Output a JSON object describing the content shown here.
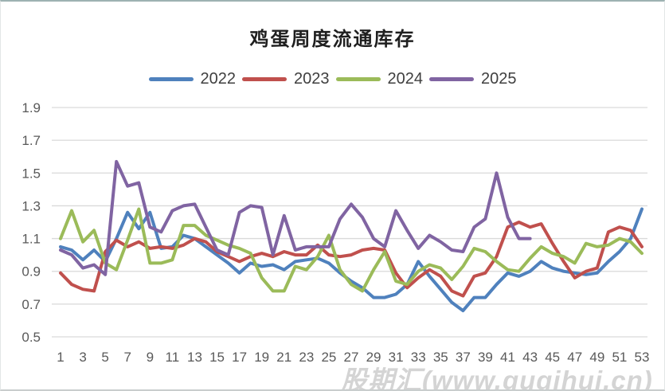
{
  "chart": {
    "title": "鸡蛋周度流通库存",
    "watermark": "股期汇(www.guqihui.cn)"
  },
  "chart_data": {
    "type": "line",
    "title": "鸡蛋周度流通库存",
    "xlabel": "",
    "ylabel": "",
    "x_unit": "week-of-year",
    "ylim": [
      0.5,
      1.9
    ],
    "y_ticks": [
      0.5,
      0.7,
      0.9,
      1.1,
      1.3,
      1.5,
      1.7,
      1.9
    ],
    "x_tick_labels": [
      1,
      3,
      5,
      7,
      9,
      11,
      13,
      15,
      17,
      19,
      21,
      23,
      25,
      27,
      29,
      31,
      33,
      35,
      37,
      39,
      41,
      43,
      45,
      47,
      49,
      51,
      53
    ],
    "grid": "horizontal",
    "legend_position": "top",
    "colors": {
      "2022": "#4F81BD",
      "2023": "#C0504D",
      "2024": "#9BBB59",
      "2025": "#8064A2"
    },
    "series": [
      {
        "name": "2022",
        "color": "#4F81BD",
        "values": [
          1.05,
          1.03,
          0.97,
          1.03,
          0.96,
          1.1,
          1.26,
          1.16,
          1.26,
          1.04,
          1.05,
          1.12,
          1.1,
          1.05,
          1.0,
          0.95,
          0.89,
          0.95,
          0.93,
          0.94,
          0.91,
          0.96,
          0.97,
          0.98,
          0.95,
          0.89,
          0.84,
          0.8,
          0.74,
          0.74,
          0.76,
          0.82,
          0.96,
          0.87,
          0.79,
          0.71,
          0.66,
          0.74,
          0.74,
          0.82,
          0.89,
          0.87,
          0.9,
          0.96,
          0.92,
          0.9,
          0.89,
          0.88,
          0.89,
          0.96,
          1.02,
          1.1,
          1.28
        ]
      },
      {
        "name": "2023",
        "color": "#C0504D",
        "values": [
          0.89,
          0.82,
          0.79,
          0.78,
          1.02,
          1.09,
          1.05,
          1.08,
          1.04,
          1.05,
          1.04,
          1.06,
          1.1,
          1.08,
          1.02,
          0.99,
          0.96,
          0.99,
          1.01,
          0.99,
          1.02,
          1.0,
          1.0,
          1.06,
          1.0,
          0.99,
          1.0,
          1.03,
          1.04,
          1.03,
          0.89,
          0.8,
          0.86,
          0.91,
          0.87,
          0.78,
          0.75,
          0.87,
          0.89,
          0.99,
          1.17,
          1.2,
          1.17,
          1.19,
          1.07,
          0.96,
          0.86,
          0.9,
          0.92,
          1.14,
          1.17,
          1.15,
          1.05
        ]
      },
      {
        "name": "2024",
        "color": "#9BBB59",
        "values": [
          1.1,
          1.27,
          1.08,
          1.15,
          0.95,
          0.91,
          1.09,
          1.28,
          0.95,
          0.95,
          0.97,
          1.18,
          1.18,
          1.12,
          1.09,
          1.06,
          1.04,
          1.01,
          0.86,
          0.78,
          0.78,
          0.93,
          0.91,
          0.99,
          1.12,
          0.91,
          0.82,
          0.78,
          0.91,
          1.02,
          0.84,
          0.82,
          0.9,
          0.94,
          0.92,
          0.85,
          0.93,
          1.04,
          1.02,
          0.96,
          0.91,
          0.9,
          0.98,
          1.05,
          1.01,
          0.99,
          0.95,
          1.07,
          1.05,
          1.06,
          1.1,
          1.08,
          1.01
        ]
      },
      {
        "name": "2025",
        "color": "#8064A2",
        "values": [
          1.03,
          1.0,
          0.92,
          0.94,
          0.88,
          1.57,
          1.42,
          1.44,
          1.17,
          1.14,
          1.27,
          1.3,
          1.31,
          1.17,
          1.03,
          1.0,
          1.26,
          1.3,
          1.29,
          1.0,
          1.24,
          1.03,
          1.05,
          1.05,
          1.05,
          1.22,
          1.31,
          1.23,
          1.1,
          1.05,
          1.27,
          1.15,
          1.04,
          1.12,
          1.08,
          1.03,
          1.02,
          1.17,
          1.22,
          1.5,
          1.23,
          1.1,
          1.1
        ]
      }
    ]
  }
}
